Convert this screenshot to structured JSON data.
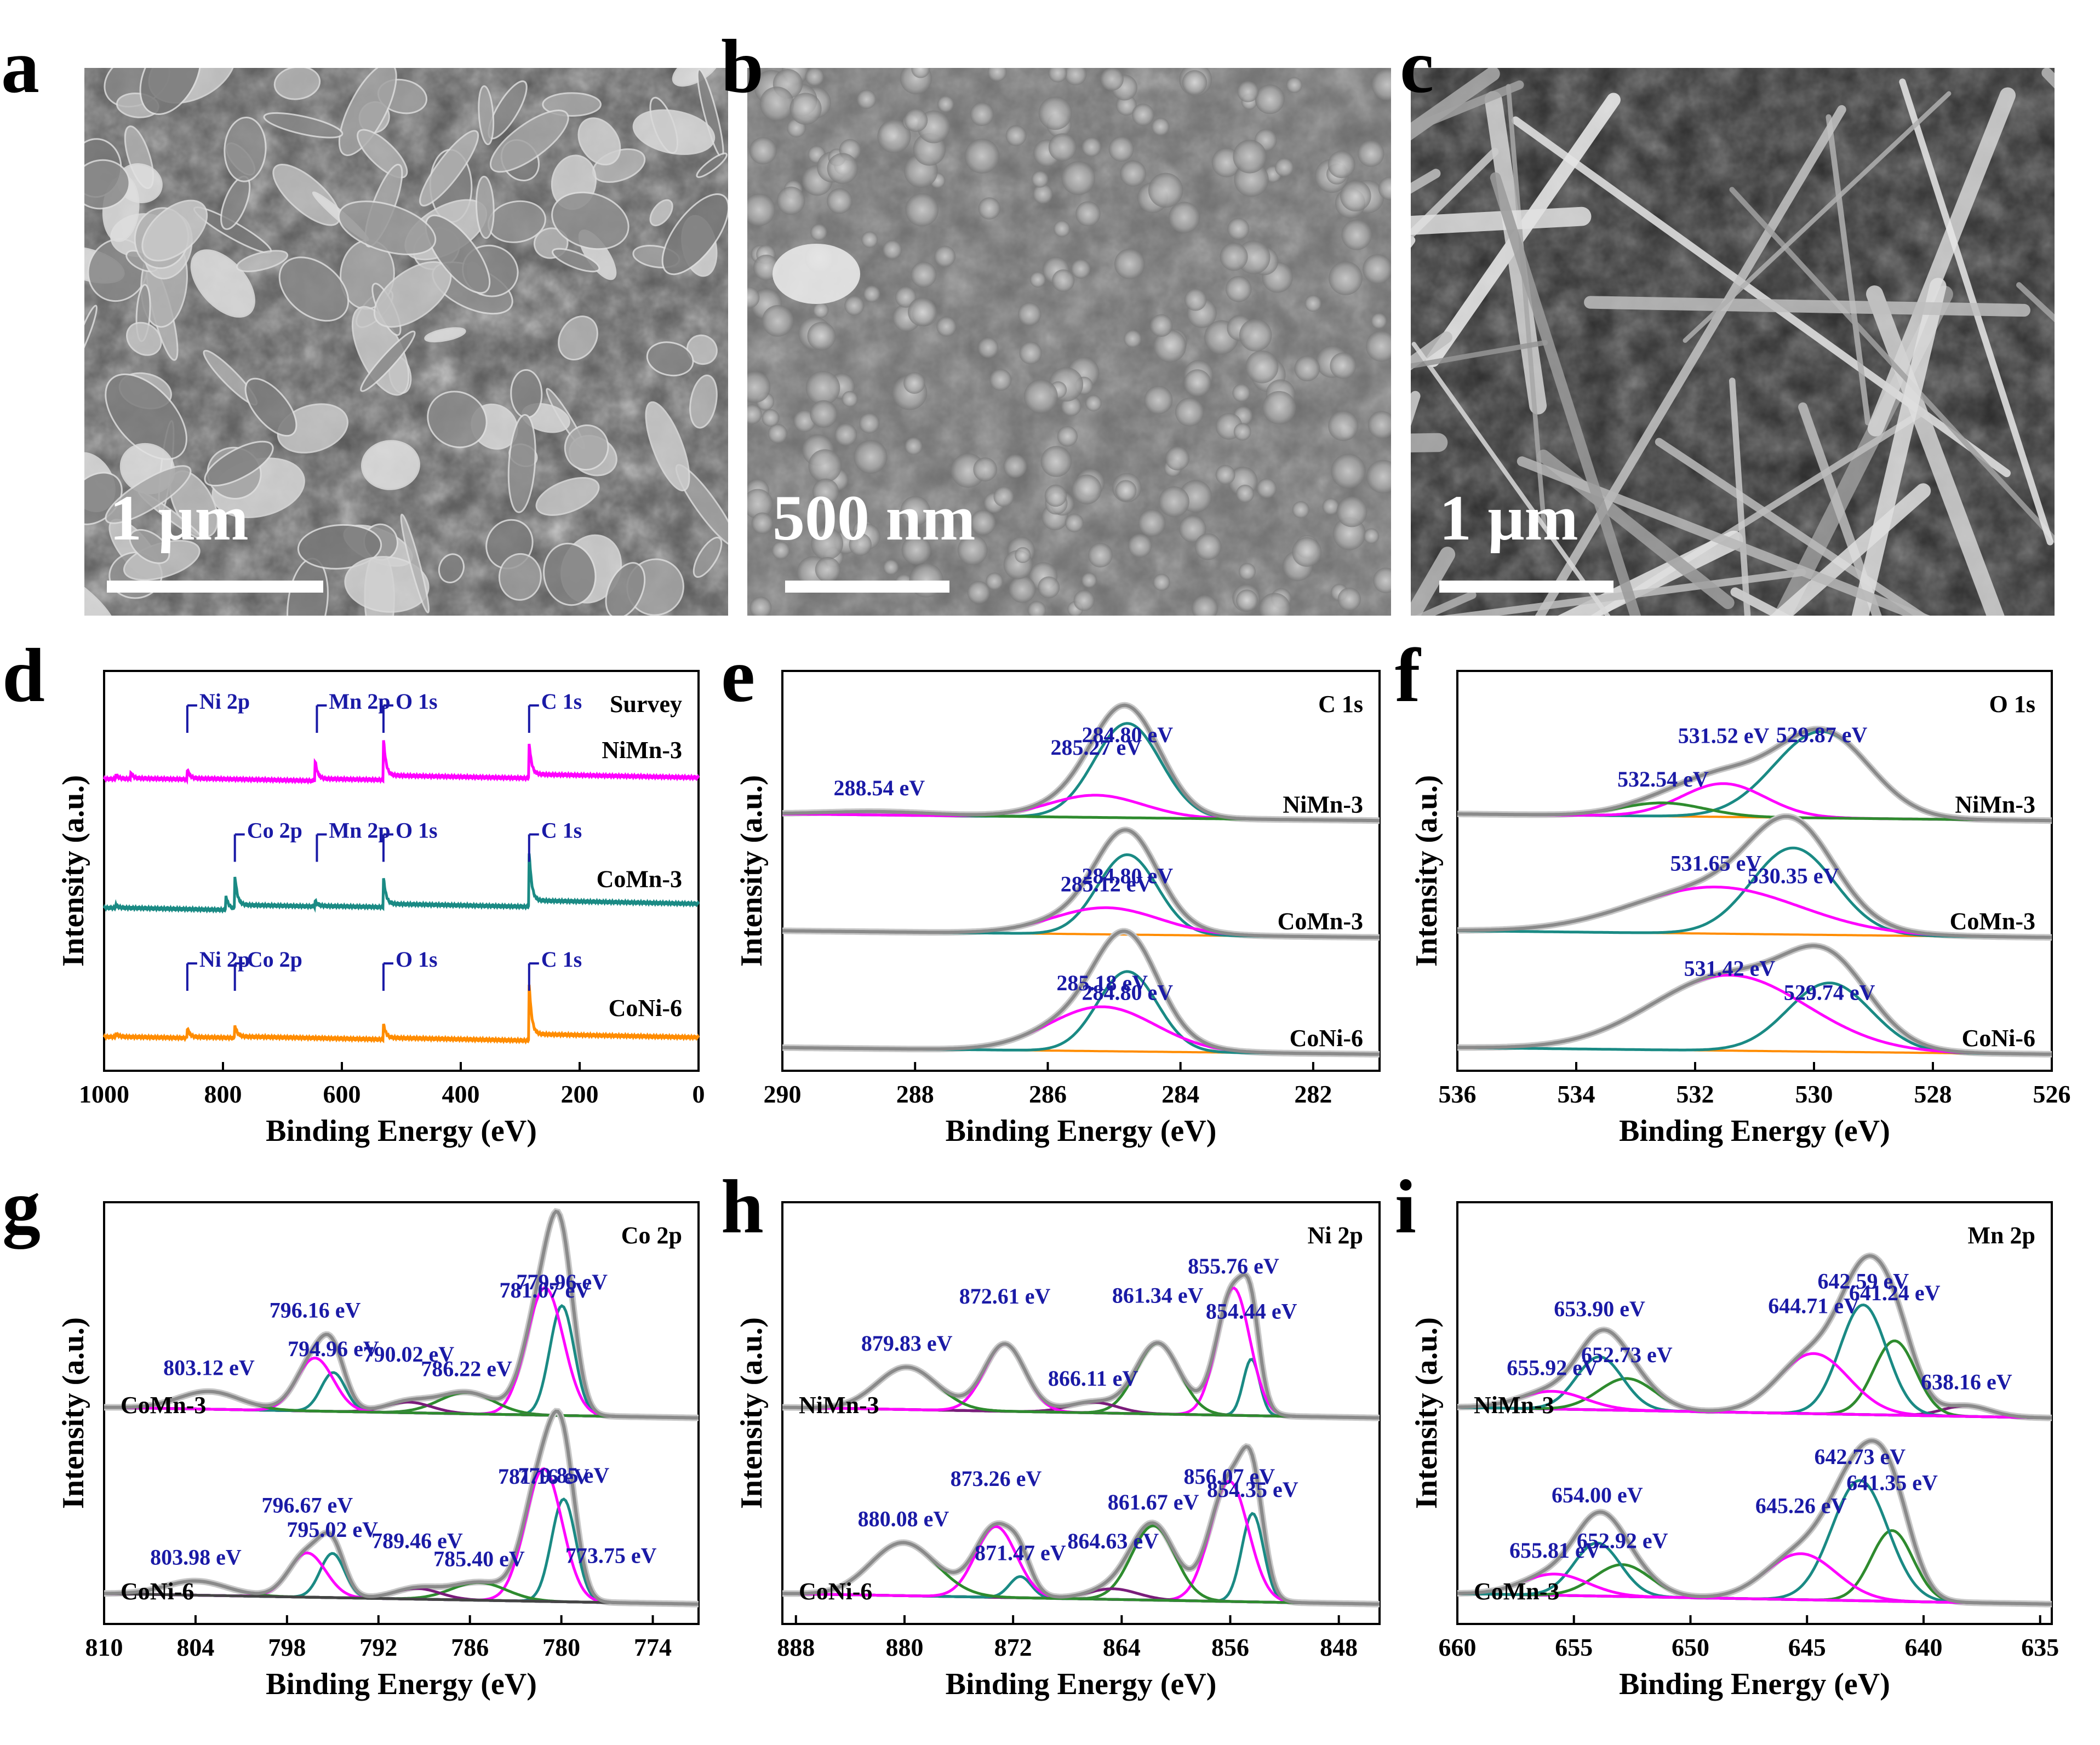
{
  "sem_panels": [
    {
      "letter": "a",
      "scale_bar": "1 μm"
    },
    {
      "letter": "b",
      "scale_bar": "500 nm"
    },
    {
      "letter": "c",
      "scale_bar": "1 μm"
    }
  ],
  "chart_data": [
    {
      "id": "d",
      "type": "line",
      "title": "Survey",
      "xlabel": "Binding Energy (eV)",
      "ylabel": "Intensity (a.u.)",
      "xlim": [
        1000,
        0
      ],
      "xticks": [
        1000,
        800,
        600,
        400,
        200,
        0
      ],
      "series": [
        {
          "name": "NiMn-3",
          "color": "#ff00ff",
          "offset": 2.0,
          "peaks": [
            [
              980,
              0.06
            ],
            [
              955,
              0.08
            ],
            [
              860,
              0.14
            ],
            [
              645,
              0.28
            ],
            [
              530,
              0.58
            ],
            [
              285,
              0.5
            ]
          ]
        },
        {
          "name": "CoMn-3",
          "color": "#1a8a84",
          "offset": 1.0,
          "peaks": [
            [
              980,
              0.04
            ],
            [
              780,
              0.46
            ],
            [
              795,
              0.2
            ],
            [
              645,
              0.08
            ],
            [
              530,
              0.42
            ],
            [
              285,
              0.78
            ]
          ]
        },
        {
          "name": "CoNi-6",
          "color": "#ff8c00",
          "offset": 0.0,
          "peaks": [
            [
              980,
              0.05
            ],
            [
              860,
              0.14
            ],
            [
              780,
              0.18
            ],
            [
              530,
              0.22
            ],
            [
              285,
              0.82
            ]
          ]
        }
      ],
      "annotations": [
        {
          "text": "Ni 2p",
          "x": 860,
          "row": 0
        },
        {
          "text": "Mn 2p",
          "x": 642,
          "row": 0
        },
        {
          "text": "O 1s",
          "x": 530,
          "row": 0
        },
        {
          "text": "C 1s",
          "x": 285,
          "row": 0
        },
        {
          "text": "Co 2p",
          "x": 780,
          "row": 1
        },
        {
          "text": "Mn 2p",
          "x": 642,
          "row": 1
        },
        {
          "text": "O 1s",
          "x": 530,
          "row": 1
        },
        {
          "text": "C 1s",
          "x": 285,
          "row": 1
        },
        {
          "text": "Ni 2p",
          "x": 860,
          "row": 2
        },
        {
          "text": "Co 2p",
          "x": 780,
          "row": 2
        },
        {
          "text": "O 1s",
          "x": 530,
          "row": 2
        },
        {
          "text": "C 1s",
          "x": 285,
          "row": 2
        }
      ]
    },
    {
      "id": "e",
      "type": "line",
      "title": "C 1s",
      "xlabel": "Binding Energy (eV)",
      "ylabel": "Intensity (a.u.)",
      "xlim": [
        290,
        281
      ],
      "xticks": [
        290,
        288,
        286,
        284,
        282
      ],
      "samples": [
        {
          "name": "NiMn-3",
          "components": [
            {
              "center": 284.8,
              "label": "284.80 eV",
              "amp": 0.85,
              "width": 0.5,
              "color": "#1a8a84"
            },
            {
              "center": 285.27,
              "label": "285.27 eV",
              "amp": 0.2,
              "width": 0.7,
              "color": "#ff00ff"
            },
            {
              "center": 288.54,
              "label": "288.54 eV",
              "amp": 0.03,
              "width": 0.8,
              "color": "#2e8b2e"
            }
          ]
        },
        {
          "name": "CoMn-3",
          "components": [
            {
              "center": 284.8,
              "label": "284.80 eV",
              "amp": 0.72,
              "width": 0.45,
              "color": "#1a8a84"
            },
            {
              "center": 285.12,
              "label": "285.12 eV",
              "amp": 0.24,
              "width": 0.8,
              "color": "#ff00ff"
            }
          ]
        },
        {
          "name": "CoNi-6",
          "components": [
            {
              "center": 284.8,
              "label": "284.80 eV",
              "amp": 0.72,
              "width": 0.45,
              "color": "#1a8a84"
            },
            {
              "center": 285.18,
              "label": "285.18 eV",
              "amp": 0.4,
              "width": 0.8,
              "color": "#ff00ff"
            }
          ]
        }
      ]
    },
    {
      "id": "f",
      "type": "line",
      "title": "O 1s",
      "xlabel": "Binding Energy (eV)",
      "ylabel": "Intensity (a.u.)",
      "xlim": [
        536,
        526
      ],
      "xticks": [
        536,
        534,
        532,
        530,
        528,
        526
      ],
      "samples": [
        {
          "name": "NiMn-3",
          "components": [
            {
              "center": 529.87,
              "label": "529.87 eV",
              "amp": 0.78,
              "width": 0.8,
              "color": "#1a8a84"
            },
            {
              "center": 531.52,
              "label": "531.52 eV",
              "amp": 0.3,
              "width": 0.7,
              "color": "#ff00ff"
            },
            {
              "center": 532.54,
              "label": "532.54 eV",
              "amp": 0.12,
              "width": 0.7,
              "color": "#2e8b2e"
            }
          ]
        },
        {
          "name": "CoMn-3",
          "components": [
            {
              "center": 530.35,
              "label": "530.35 eV",
              "amp": 0.78,
              "width": 0.7,
              "color": "#1a8a84"
            },
            {
              "center": 531.65,
              "label": "531.65 eV",
              "amp": 0.42,
              "width": 1.4,
              "color": "#ff00ff"
            }
          ]
        },
        {
          "name": "CoNi-6",
          "components": [
            {
              "center": 529.74,
              "label": "529.74 eV",
              "amp": 0.62,
              "width": 0.7,
              "color": "#1a8a84"
            },
            {
              "center": 531.42,
              "label": "531.42 eV",
              "amp": 0.68,
              "width": 1.3,
              "color": "#ff00ff"
            }
          ]
        }
      ]
    },
    {
      "id": "g",
      "type": "line",
      "title": "Co 2p",
      "xlabel": "Binding Energy (eV)",
      "ylabel": "Intensity (a.u.)",
      "xlim": [
        810,
        771
      ],
      "xticks": [
        810,
        804,
        798,
        792,
        786,
        780,
        774
      ],
      "samples": [
        {
          "name": "CoMn-3",
          "components": [
            {
              "center": 779.96,
              "label": "779.96 eV",
              "amp": 0.62,
              "width": 0.8,
              "color": "#1a8a84"
            },
            {
              "center": 781.07,
              "label": "781.07 eV",
              "amp": 0.72,
              "width": 1.2,
              "color": "#ff00ff"
            },
            {
              "center": 786.22,
              "label": "786.22 eV",
              "amp": 0.12,
              "width": 1.8,
              "color": "#2e8b2e"
            },
            {
              "center": 790.02,
              "label": "790.02 eV",
              "amp": 0.06,
              "width": 1.5,
              "color": "#7a1c7a"
            },
            {
              "center": 794.96,
              "label": "794.96 eV",
              "amp": 0.22,
              "width": 0.8,
              "color": "#1a8a84"
            },
            {
              "center": 796.16,
              "label": "796.16 eV",
              "amp": 0.3,
              "width": 1.2,
              "color": "#ff00ff"
            },
            {
              "center": 803.12,
              "label": "803.12 eV",
              "amp": 0.1,
              "width": 2.0,
              "color": "#2e8b2e"
            }
          ]
        },
        {
          "name": "CoNi-6",
          "components": [
            {
              "center": 779.85,
              "label": "779.85 eV",
              "amp": 0.58,
              "width": 0.8,
              "color": "#1a8a84"
            },
            {
              "center": 781.16,
              "label": "781.16 eV",
              "amp": 0.75,
              "width": 1.2,
              "color": "#ff00ff"
            },
            {
              "center": 785.4,
              "label": "785.40 eV",
              "amp": 0.1,
              "width": 1.8,
              "color": "#2e8b2e"
            },
            {
              "center": 789.46,
              "label": "789.46 eV",
              "amp": 0.06,
              "width": 1.5,
              "color": "#7a1c7a"
            },
            {
              "center": 795.02,
              "label": "795.02 eV",
              "amp": 0.25,
              "width": 0.8,
              "color": "#1a8a84"
            },
            {
              "center": 796.67,
              "label": "796.67 eV",
              "amp": 0.25,
              "width": 1.2,
              "color": "#ff00ff"
            },
            {
              "center": 803.98,
              "label": "803.98 eV",
              "amp": 0.08,
              "width": 2.0,
              "color": "#2e8b2e"
            },
            {
              "center": 773.75,
              "label": "773.75 eV",
              "amp": 0.0,
              "width": 1.0,
              "color": "#444444"
            }
          ]
        }
      ]
    },
    {
      "id": "h",
      "type": "line",
      "title": "Ni 2p",
      "xlabel": "Binding Energy (eV)",
      "ylabel": "Intensity (a.u.)",
      "xlim": [
        889,
        845
      ],
      "xticks": [
        888,
        880,
        872,
        864,
        856,
        848
      ],
      "samples": [
        {
          "name": "NiMn-3",
          "components": [
            {
              "center": 854.44,
              "label": "854.44 eV",
              "amp": 0.32,
              "width": 0.6,
              "color": "#1a8a84"
            },
            {
              "center": 855.76,
              "label": "855.76 eV",
              "amp": 0.72,
              "width": 1.2,
              "color": "#ff00ff"
            },
            {
              "center": 861.34,
              "label": "861.34 eV",
              "amp": 0.4,
              "width": 1.6,
              "color": "#2e8b2e"
            },
            {
              "center": 866.11,
              "label": "866.11 eV",
              "amp": 0.06,
              "width": 1.8,
              "color": "#7a1c7a"
            },
            {
              "center": 872.61,
              "label": "872.61 eV",
              "amp": 0.38,
              "width": 1.5,
              "color": "#ff00ff"
            },
            {
              "center": 879.83,
              "label": "879.83 eV",
              "amp": 0.24,
              "width": 2.2,
              "color": "#2e8b2e"
            }
          ]
        },
        {
          "name": "CoNi-6",
          "components": [
            {
              "center": 854.35,
              "label": "854.35 eV",
              "amp": 0.5,
              "width": 0.8,
              "color": "#1a8a84"
            },
            {
              "center": 856.07,
              "label": "856.07 eV",
              "amp": 0.68,
              "width": 1.4,
              "color": "#ff00ff"
            },
            {
              "center": 861.67,
              "label": "861.67 eV",
              "amp": 0.42,
              "width": 1.6,
              "color": "#2e8b2e"
            },
            {
              "center": 864.63,
              "label": "864.63 eV",
              "amp": 0.06,
              "width": 1.8,
              "color": "#7a1c7a"
            },
            {
              "center": 871.47,
              "label": "871.47 eV",
              "amp": 0.12,
              "width": 0.8,
              "color": "#1a8a84"
            },
            {
              "center": 873.26,
              "label": "873.26 eV",
              "amp": 0.4,
              "width": 1.5,
              "color": "#ff00ff"
            },
            {
              "center": 880.08,
              "label": "880.08 eV",
              "amp": 0.3,
              "width": 2.4,
              "color": "#2e8b2e"
            }
          ]
        }
      ]
    },
    {
      "id": "i",
      "type": "line",
      "title": "Mn 2p",
      "xlabel": "Binding Energy (eV)",
      "ylabel": "Intensity (a.u.)",
      "xlim": [
        660,
        634.5
      ],
      "xticks": [
        660,
        655,
        650,
        645,
        640,
        635
      ],
      "samples": [
        {
          "name": "NiMn-3",
          "components": [
            {
              "center": 638.16,
              "label": "638.16 eV",
              "amp": 0.06,
              "width": 1.0,
              "color": "#7a1c7a"
            },
            {
              "center": 641.24,
              "label": "641.24 eV",
              "amp": 0.42,
              "width": 0.9,
              "color": "#2e8b2e"
            },
            {
              "center": 642.59,
              "label": "642.59 eV",
              "amp": 0.62,
              "width": 1.0,
              "color": "#1a8a84"
            },
            {
              "center": 644.71,
              "label": "644.71 eV",
              "amp": 0.34,
              "width": 1.5,
              "color": "#ff00ff"
            },
            {
              "center": 652.73,
              "label": "652.73 eV",
              "amp": 0.18,
              "width": 1.2,
              "color": "#2e8b2e"
            },
            {
              "center": 653.9,
              "label": "653.90 eV",
              "amp": 0.3,
              "width": 1.0,
              "color": "#1a8a84"
            },
            {
              "center": 655.92,
              "label": "655.92 eV",
              "amp": 0.1,
              "width": 1.4,
              "color": "#ff00ff"
            }
          ]
        },
        {
          "name": "CoMn-3",
          "components": [
            {
              "center": 641.35,
              "label": "641.35 eV",
              "amp": 0.4,
              "width": 0.9,
              "color": "#2e8b2e"
            },
            {
              "center": 642.73,
              "label": "642.73 eV",
              "amp": 0.68,
              "width": 1.2,
              "color": "#1a8a84"
            },
            {
              "center": 645.26,
              "label": "645.26 eV",
              "amp": 0.26,
              "width": 1.5,
              "color": "#ff00ff"
            },
            {
              "center": 652.92,
              "label": "652.92 eV",
              "amp": 0.18,
              "width": 1.2,
              "color": "#2e8b2e"
            },
            {
              "center": 654.0,
              "label": "654.00 eV",
              "amp": 0.3,
              "width": 1.0,
              "color": "#1a8a84"
            },
            {
              "center": 655.81,
              "label": "655.81 eV",
              "amp": 0.12,
              "width": 1.4,
              "color": "#ff00ff"
            }
          ]
        }
      ]
    }
  ]
}
